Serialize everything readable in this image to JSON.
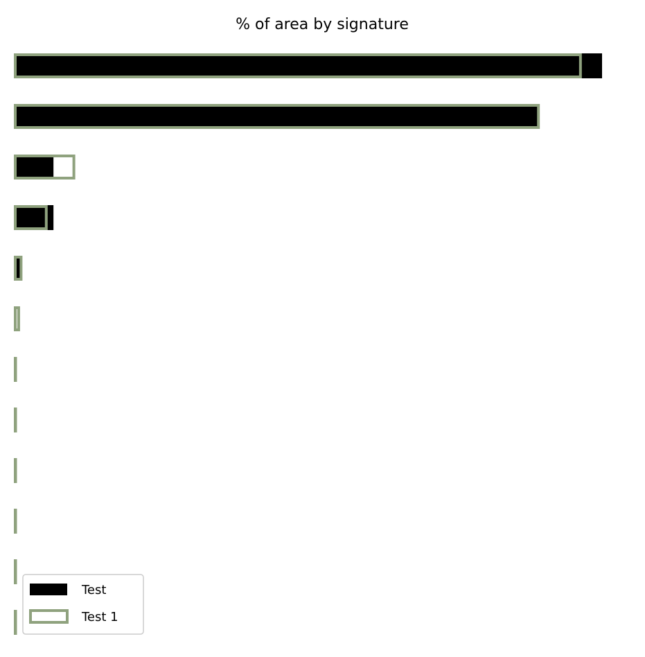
{
  "chart_data": {
    "type": "bar",
    "orientation": "horizontal",
    "title": "% of area by signature",
    "xlabel": "",
    "ylabel": "",
    "categories": [
      "",
      "",
      "",
      "",
      "",
      "",
      "",
      "",
      "",
      "",
      "",
      ""
    ],
    "series": [
      {
        "name": "Test",
        "style": "filled",
        "color": "#000000",
        "values": [
          49.0,
          43.7,
          3.3,
          3.3,
          0.5,
          0.08,
          0.02,
          0.02,
          0.02,
          0.01,
          0.01,
          0.01
        ]
      },
      {
        "name": "Test 1",
        "style": "outline",
        "color": "#8fa27e",
        "values": [
          47.2,
          43.7,
          5.0,
          2.7,
          0.6,
          0.4,
          0.1,
          0.1,
          0.1,
          0.1,
          0.05,
          0.05
        ]
      }
    ],
    "xlim": [
      0,
      52
    ],
    "axes_visible": false,
    "grid": false,
    "legend_position": "lower-left"
  }
}
